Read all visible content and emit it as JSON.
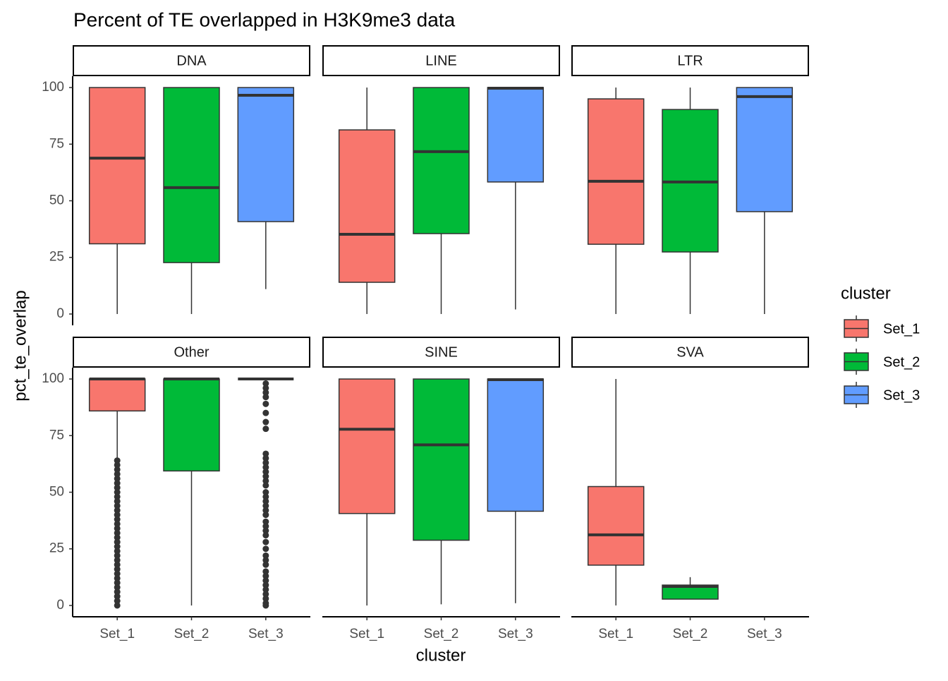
{
  "chart_data": {
    "type": "box",
    "title": "Percent of TE overlapped in H3K9me3 data",
    "x_label": "cluster",
    "y_label": "pct_te_overlap",
    "legend_title": "cluster",
    "categories": [
      "Set_1",
      "Set_2",
      "Set_3"
    ],
    "series": [
      {
        "name": "Set_1",
        "color": "#F8766D"
      },
      {
        "name": "Set_2",
        "color": "#00BA38"
      },
      {
        "name": "Set_3",
        "color": "#619CFF"
      }
    ],
    "ylim": [
      -5,
      105
    ],
    "yticks": [
      0,
      25,
      50,
      75,
      100
    ],
    "facets": [
      {
        "label": "DNA",
        "boxes": [
          {
            "min": 0,
            "q1": 31,
            "median": 68.8,
            "q3": 100,
            "max": 100
          },
          {
            "min": 0,
            "q1": 22.7,
            "median": 55.8,
            "q3": 100,
            "max": 100
          },
          {
            "min": 11,
            "q1": 40.8,
            "median": 96.6,
            "q3": 100,
            "max": 100
          }
        ]
      },
      {
        "label": "LINE",
        "boxes": [
          {
            "min": 0,
            "q1": 14,
            "median": 35.2,
            "q3": 81.3,
            "max": 100
          },
          {
            "min": 0,
            "q1": 35.5,
            "median": 71.7,
            "q3": 100,
            "max": 100
          },
          {
            "min": 2,
            "q1": 58.3,
            "median": 99.7,
            "q3": 100,
            "max": 100
          }
        ]
      },
      {
        "label": "LTR",
        "boxes": [
          {
            "min": 0,
            "q1": 30.8,
            "median": 58.6,
            "q3": 95,
            "max": 100
          },
          {
            "min": 0,
            "q1": 27.4,
            "median": 58.3,
            "q3": 90.3,
            "max": 100
          },
          {
            "min": 0,
            "q1": 45.2,
            "median": 96,
            "q3": 100,
            "max": 100
          }
        ]
      },
      {
        "label": "Other",
        "boxes": [
          {
            "min": 64.5,
            "q1": 85.9,
            "median": 100,
            "q3": 100,
            "max": 100,
            "outliers": [
              0,
              2,
              4,
              6,
              8,
              10,
              12,
              14,
              16,
              18,
              20,
              22,
              24,
              26,
              28,
              30,
              32,
              34,
              36,
              38,
              40,
              42,
              44,
              46,
              48,
              50,
              52,
              54,
              56,
              58,
              60,
              62,
              64
            ]
          },
          {
            "min": 0,
            "q1": 59.4,
            "median": 100,
            "q3": 100,
            "max": 100
          },
          {
            "min": 100,
            "q1": 100,
            "median": 100,
            "q3": 100,
            "max": 100,
            "outliers": [
              98,
              96,
              94,
              92,
              89,
              85,
              81,
              78,
              67,
              65,
              63,
              61,
              59,
              57,
              55,
              53,
              50,
              48,
              46,
              44,
              42,
              40,
              37,
              35,
              33,
              31,
              28,
              25,
              22,
              20,
              18,
              15,
              13,
              11,
              9,
              7,
              5,
              3,
              1,
              0
            ]
          }
        ]
      },
      {
        "label": "SINE",
        "boxes": [
          {
            "min": 0,
            "q1": 40.6,
            "median": 77.8,
            "q3": 100,
            "max": 100
          },
          {
            "min": 0.5,
            "q1": 28.8,
            "median": 70.9,
            "q3": 100,
            "max": 100
          },
          {
            "min": 1,
            "q1": 41.6,
            "median": 99.7,
            "q3": 100,
            "max": 100
          }
        ]
      },
      {
        "label": "SVA",
        "boxes": [
          {
            "min": 0,
            "q1": 17.8,
            "median": 31.2,
            "q3": 52.5,
            "max": 100
          },
          {
            "min": 2.8,
            "q1": 2.8,
            "median": 8.4,
            "q3": 9,
            "max": 12.5
          },
          null
        ]
      }
    ]
  }
}
